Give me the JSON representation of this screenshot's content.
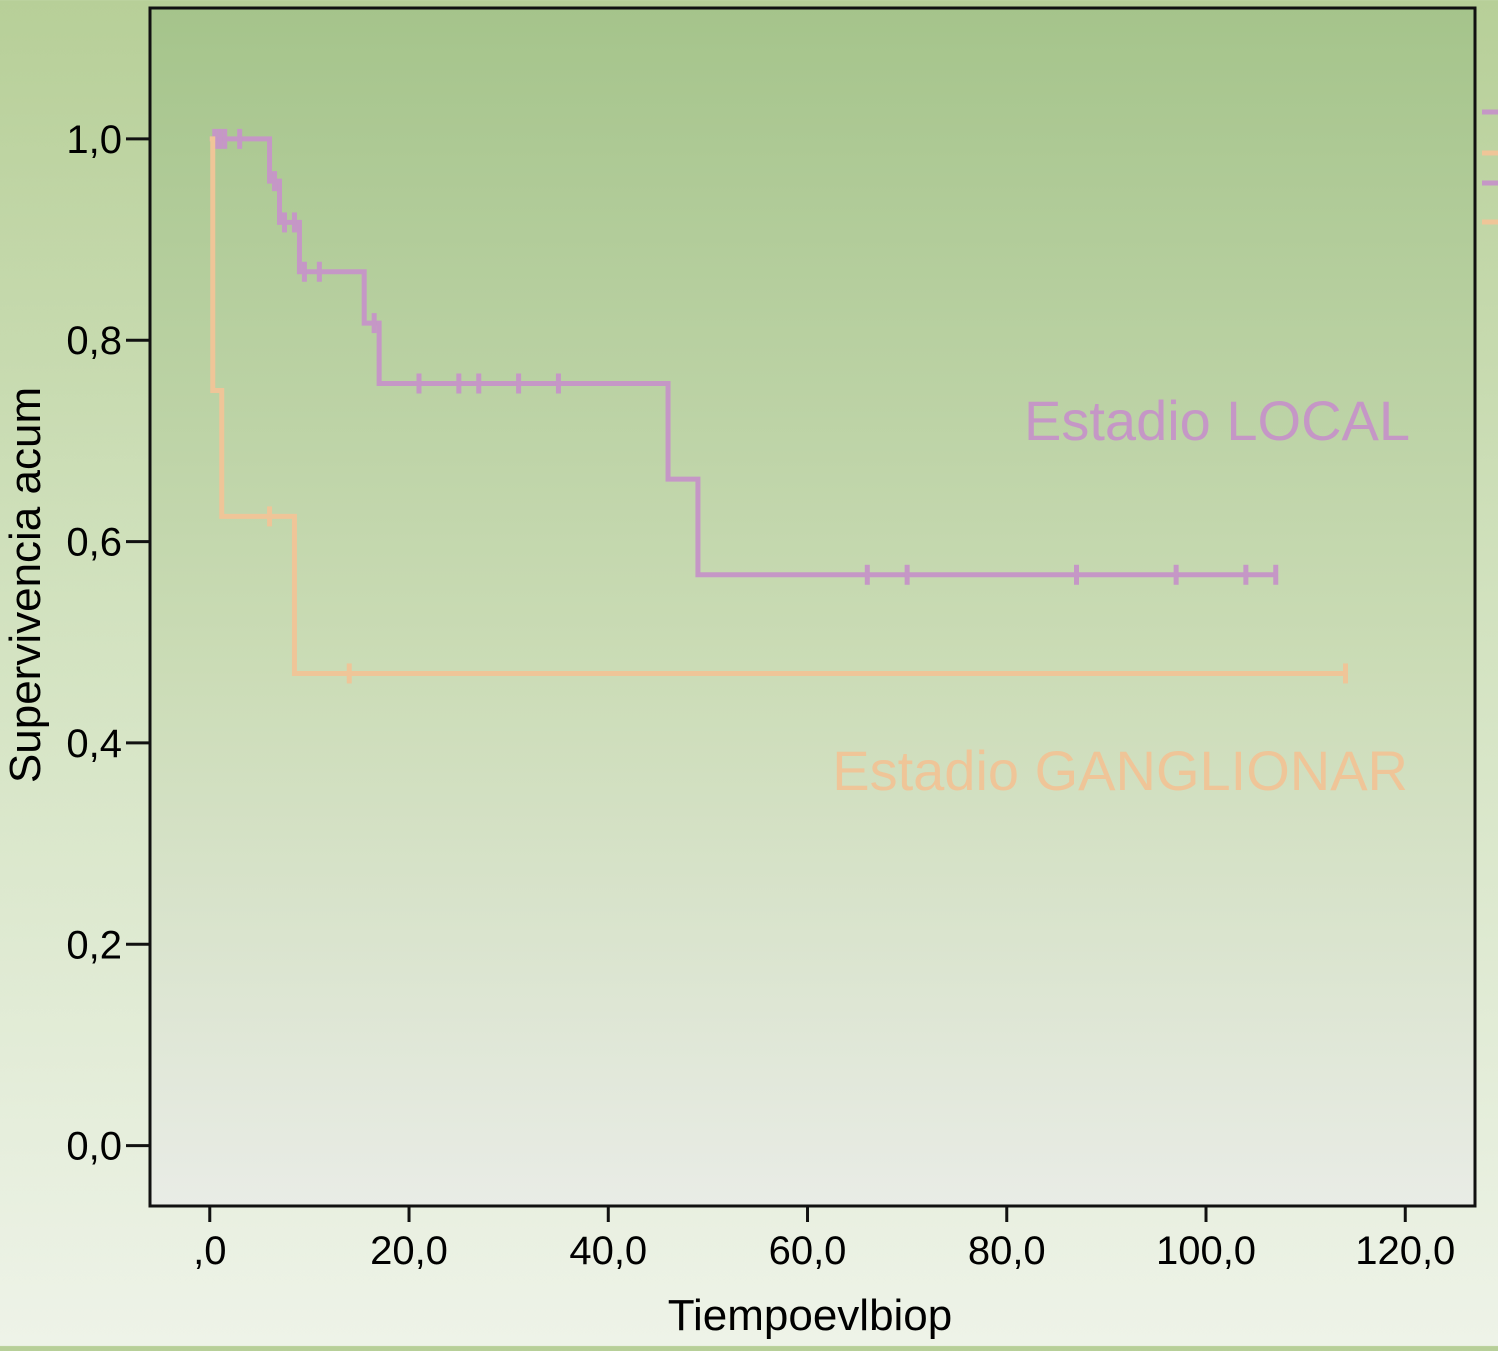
{
  "chart_data": {
    "type": "line",
    "step": true,
    "xlabel": "Tiempoevlbiop",
    "ylabel": "Supervivencia acum",
    "xlim": [
      -6,
      127
    ],
    "ylim": [
      -0.06,
      1.13
    ],
    "xticks": [
      0,
      20,
      40,
      60,
      80,
      100,
      120
    ],
    "xtick_labels": [
      ",0",
      "20,0",
      "40,0",
      "60,0",
      "80,0",
      "100,0",
      "120,0"
    ],
    "yticks": [
      0,
      0.2,
      0.4,
      0.6,
      0.8,
      1.0
    ],
    "ytick_labels": [
      "0,0",
      "0,2",
      "0,4",
      "0,6",
      "0,8",
      "1,0"
    ],
    "grid": false,
    "legend": "right, partially cut off",
    "background": "green-to-light-gray gradient",
    "series": [
      {
        "name": "Estadio LOCAL",
        "color": "#c597c6",
        "steps": [
          [
            0,
            1.0
          ],
          [
            6,
            0.958
          ],
          [
            7,
            0.917
          ],
          [
            9,
            0.868
          ],
          [
            15.5,
            0.817
          ],
          [
            17,
            0.757
          ],
          [
            46,
            0.662
          ],
          [
            49,
            0.567
          ],
          [
            107,
            0.567
          ]
        ],
        "censored": [
          [
            0.5,
            1.0
          ],
          [
            1,
            1.0
          ],
          [
            1.5,
            1.0
          ],
          [
            3,
            1.0
          ],
          [
            6.5,
            0.958
          ],
          [
            7.5,
            0.917
          ],
          [
            8.5,
            0.917
          ],
          [
            9.5,
            0.868
          ],
          [
            11,
            0.868
          ],
          [
            16.5,
            0.817
          ],
          [
            21,
            0.757
          ],
          [
            25,
            0.757
          ],
          [
            27,
            0.757
          ],
          [
            31,
            0.757
          ],
          [
            35,
            0.757
          ],
          [
            66,
            0.567
          ],
          [
            70,
            0.567
          ],
          [
            87,
            0.567
          ],
          [
            97,
            0.567
          ],
          [
            104,
            0.567
          ],
          [
            107,
            0.567
          ]
        ]
      },
      {
        "name": "Estadio GANGLIONAR",
        "color": "#efc598",
        "steps": [
          [
            0,
            1.0
          ],
          [
            0.3,
            0.75
          ],
          [
            1.2,
            0.625
          ],
          [
            8.5,
            0.469
          ],
          [
            114,
            0.469
          ]
        ],
        "censored": [
          [
            6,
            0.625
          ],
          [
            14,
            0.469
          ],
          [
            114,
            0.469
          ]
        ]
      }
    ],
    "annotations": [
      {
        "text": "Estadio LOCAL",
        "color": "#c597c6"
      },
      {
        "text": "Estadio GANGLIONAR",
        "color": "#efc598"
      }
    ]
  }
}
